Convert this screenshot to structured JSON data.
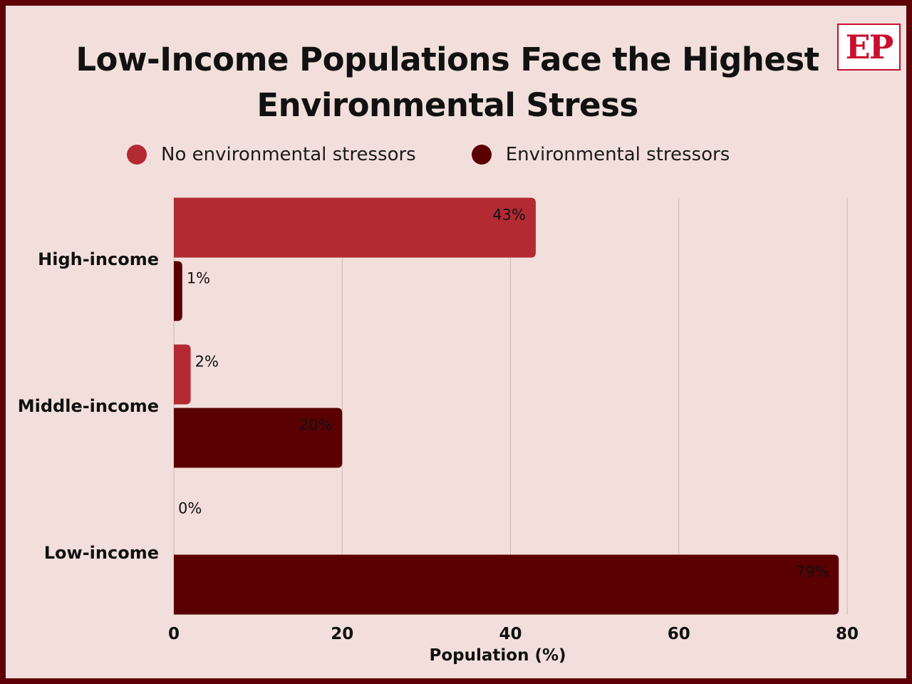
{
  "colors": {
    "background": "#f2dfdb",
    "border": "#5e0006",
    "no_stressors": "#b32a33",
    "stressors": "#5a0002",
    "gridline": "#c9b8b4",
    "logo_red": "#c8102e"
  },
  "logo": {
    "text": "EP"
  },
  "chart_data": {
    "type": "bar",
    "orientation": "horizontal",
    "title": "Low-Income Populations Face the Highest Environmental Stress",
    "title_lines": [
      "Low-Income Populations Face the Highest",
      "Environmental Stress"
    ],
    "xlabel": "Population (%)",
    "ylabel": "",
    "categories": [
      "High-income",
      "Middle-income",
      "Low-income"
    ],
    "series": [
      {
        "name": "No environmental stressors",
        "values": [
          43,
          2,
          0
        ],
        "labels": [
          "43%",
          "2%",
          "0%"
        ],
        "color": "#b32a33"
      },
      {
        "name": "Environmental stressors",
        "values": [
          1,
          20,
          79
        ],
        "labels": [
          "1%",
          "20%",
          "79%"
        ],
        "color": "#5a0002"
      }
    ],
    "xlim": [
      0,
      80
    ],
    "xticks": [
      0,
      20,
      40,
      60,
      80
    ],
    "xtick_labels": [
      "0",
      "20",
      "40",
      "60",
      "80"
    ],
    "grid": true,
    "legend_position": "top"
  }
}
